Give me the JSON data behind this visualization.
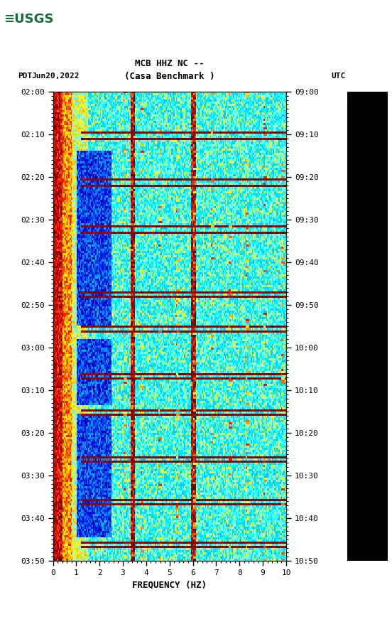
{
  "title_line1": "MCB HHZ NC --",
  "title_line2": "(Casa Benchmark )",
  "label_left": "PDT",
  "label_date": "Jun20,2022",
  "label_right": "UTC",
  "freq_label": "FREQUENCY (HZ)",
  "freq_min": 0,
  "freq_max": 10,
  "pdt_ticks": [
    "02:00",
    "02:10",
    "02:20",
    "02:30",
    "02:40",
    "02:50",
    "03:00",
    "03:10",
    "03:20",
    "03:30",
    "03:40",
    "03:50"
  ],
  "utc_ticks": [
    "09:00",
    "09:10",
    "09:20",
    "09:30",
    "09:40",
    "09:50",
    "10:00",
    "10:10",
    "10:20",
    "10:30",
    "10:40",
    "10:50"
  ],
  "n_time": 220,
  "n_freq": 200,
  "bg_color": "#ffffff",
  "usgs_green": "#1a6b3c",
  "figure_width": 5.52,
  "figure_height": 8.92,
  "cmap_colors": [
    [
      0.0,
      "#000080"
    ],
    [
      0.08,
      "#0000cd"
    ],
    [
      0.15,
      "#0040ff"
    ],
    [
      0.25,
      "#00bfff"
    ],
    [
      0.38,
      "#00ffff"
    ],
    [
      0.5,
      "#80ffff"
    ],
    [
      0.6,
      "#ffff00"
    ],
    [
      0.72,
      "#ffa500"
    ],
    [
      0.82,
      "#ff2000"
    ],
    [
      0.9,
      "#cc0000"
    ],
    [
      1.0,
      "#600000"
    ]
  ]
}
